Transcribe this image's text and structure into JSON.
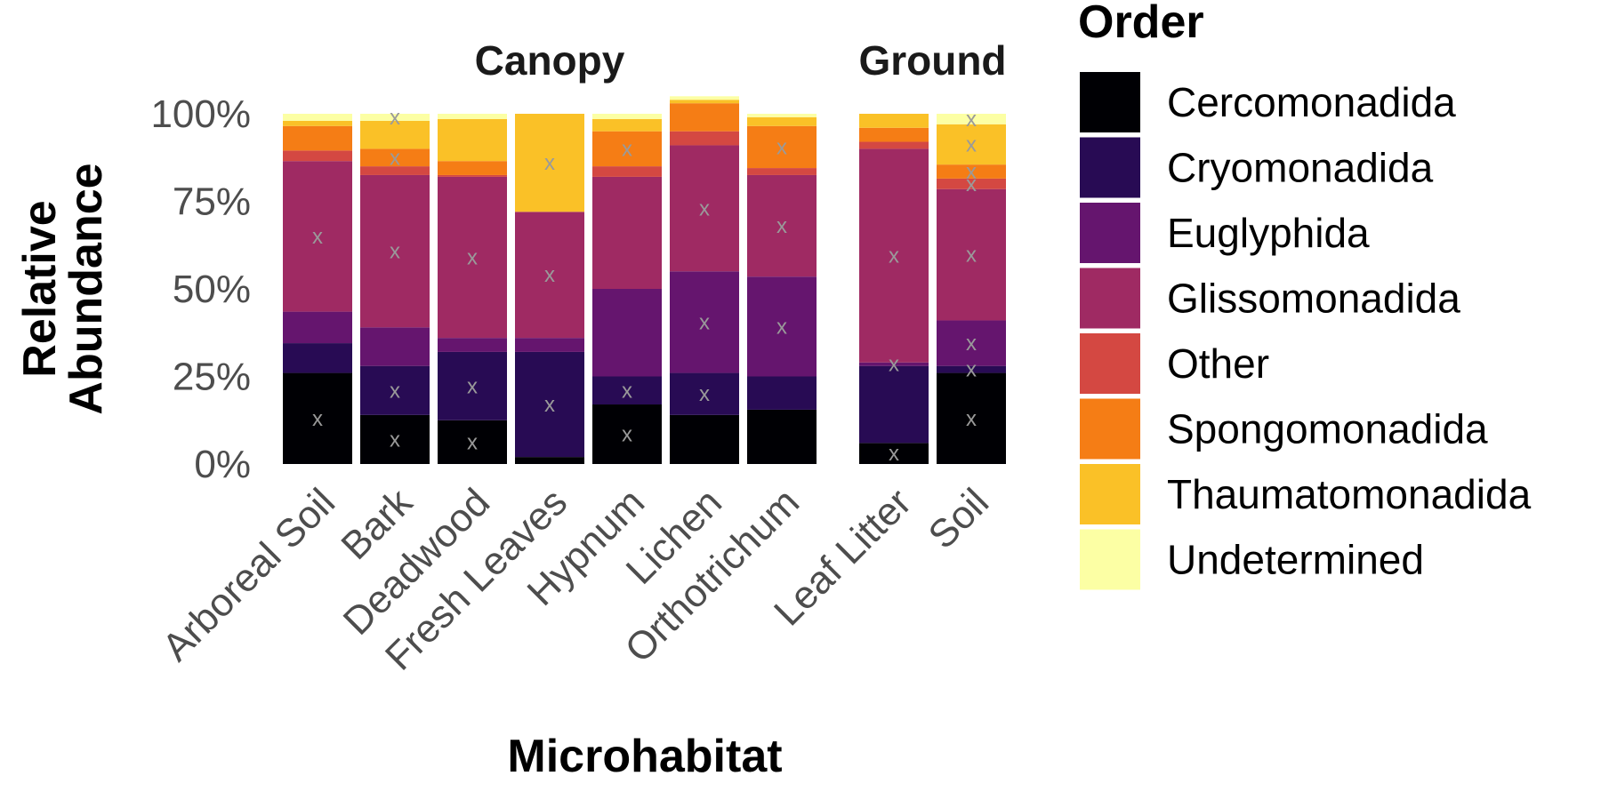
{
  "chart_data": {
    "type": "bar",
    "stacked": true,
    "normalized": true,
    "xlabel": "Microhabitat",
    "ylabel_lines": [
      "Relative",
      "Abundance"
    ],
    "ylim": [
      0,
      1
    ],
    "yticks": [
      {
        "value": 0,
        "label": "0%"
      },
      {
        "value": 0.25,
        "label": "25%"
      },
      {
        "value": 0.5,
        "label": "50%"
      },
      {
        "value": 0.75,
        "label": "75%"
      },
      {
        "value": 1,
        "label": "100%"
      }
    ],
    "legend": {
      "title": "Order",
      "position": "right"
    },
    "marker_symbol": "x",
    "series": [
      {
        "name": "Cercomonadida",
        "color": "#000004"
      },
      {
        "name": "Cryomonadida",
        "color": "#280b54"
      },
      {
        "name": "Euglyphida",
        "color": "#65156e"
      },
      {
        "name": "Glissomonadida",
        "color": "#9f2a63"
      },
      {
        "name": "Other",
        "color": "#d44842"
      },
      {
        "name": "Spongomonadida",
        "color": "#f57d15"
      },
      {
        "name": "Thaumatomonadida",
        "color": "#fac127"
      },
      {
        "name": "Undetermined",
        "color": "#fcffa4"
      }
    ],
    "facets": [
      {
        "name": "Canopy",
        "bars": [
          {
            "category": "Arboreal Soil",
            "values": [
              0.26,
              0.085,
              0.09,
              0.43,
              0.03,
              0.07,
              0.015,
              0.02
            ],
            "markers": [
              1,
              4
            ]
          },
          {
            "category": "Bark",
            "values": [
              0.14,
              0.14,
              0.11,
              0.435,
              0.025,
              0.05,
              0.08,
              0.02
            ],
            "markers": [
              1,
              2,
              4,
              6,
              8
            ]
          },
          {
            "category": "Deadwood",
            "values": [
              0.125,
              0.195,
              0.04,
              0.46,
              0.005,
              0.04,
              0.12,
              0.015
            ],
            "markers": [
              1,
              2,
              4
            ]
          },
          {
            "category": "Fresh Leaves",
            "values": [
              0.02,
              0.3,
              0.04,
              0.36,
              0,
              0,
              0.28,
              0
            ],
            "markers": [
              2,
              4,
              7
            ]
          },
          {
            "category": "Hypnum",
            "values": [
              0.17,
              0.08,
              0.25,
              0.32,
              0.03,
              0.1,
              0.035,
              0.015
            ],
            "markers": [
              1,
              2,
              6
            ]
          },
          {
            "category": "Lichen",
            "values": [
              0.14,
              0.12,
              0.29,
              0.36,
              0.04,
              0.08,
              0.01,
              0.01
            ],
            "markers": [
              2,
              3,
              4
            ]
          },
          {
            "category": "Orthotrichum",
            "values": [
              0.155,
              0.095,
              0.285,
              0.29,
              0.02,
              0.12,
              0.025,
              0.01
            ],
            "markers": [
              3,
              4,
              6
            ]
          }
        ]
      },
      {
        "name": "Ground",
        "bars": [
          {
            "category": "Leaf Litter",
            "values": [
              0.06,
              0.22,
              0.01,
              0.61,
              0.02,
              0.04,
              0.04,
              0
            ],
            "markers": [
              1,
              3,
              4
            ]
          },
          {
            "category": "Soil",
            "values": [
              0.26,
              0.02,
              0.13,
              0.375,
              0.03,
              0.04,
              0.115,
              0.03
            ],
            "markers": [
              1,
              2,
              3,
              4,
              5,
              6,
              7,
              8
            ]
          }
        ]
      }
    ]
  }
}
